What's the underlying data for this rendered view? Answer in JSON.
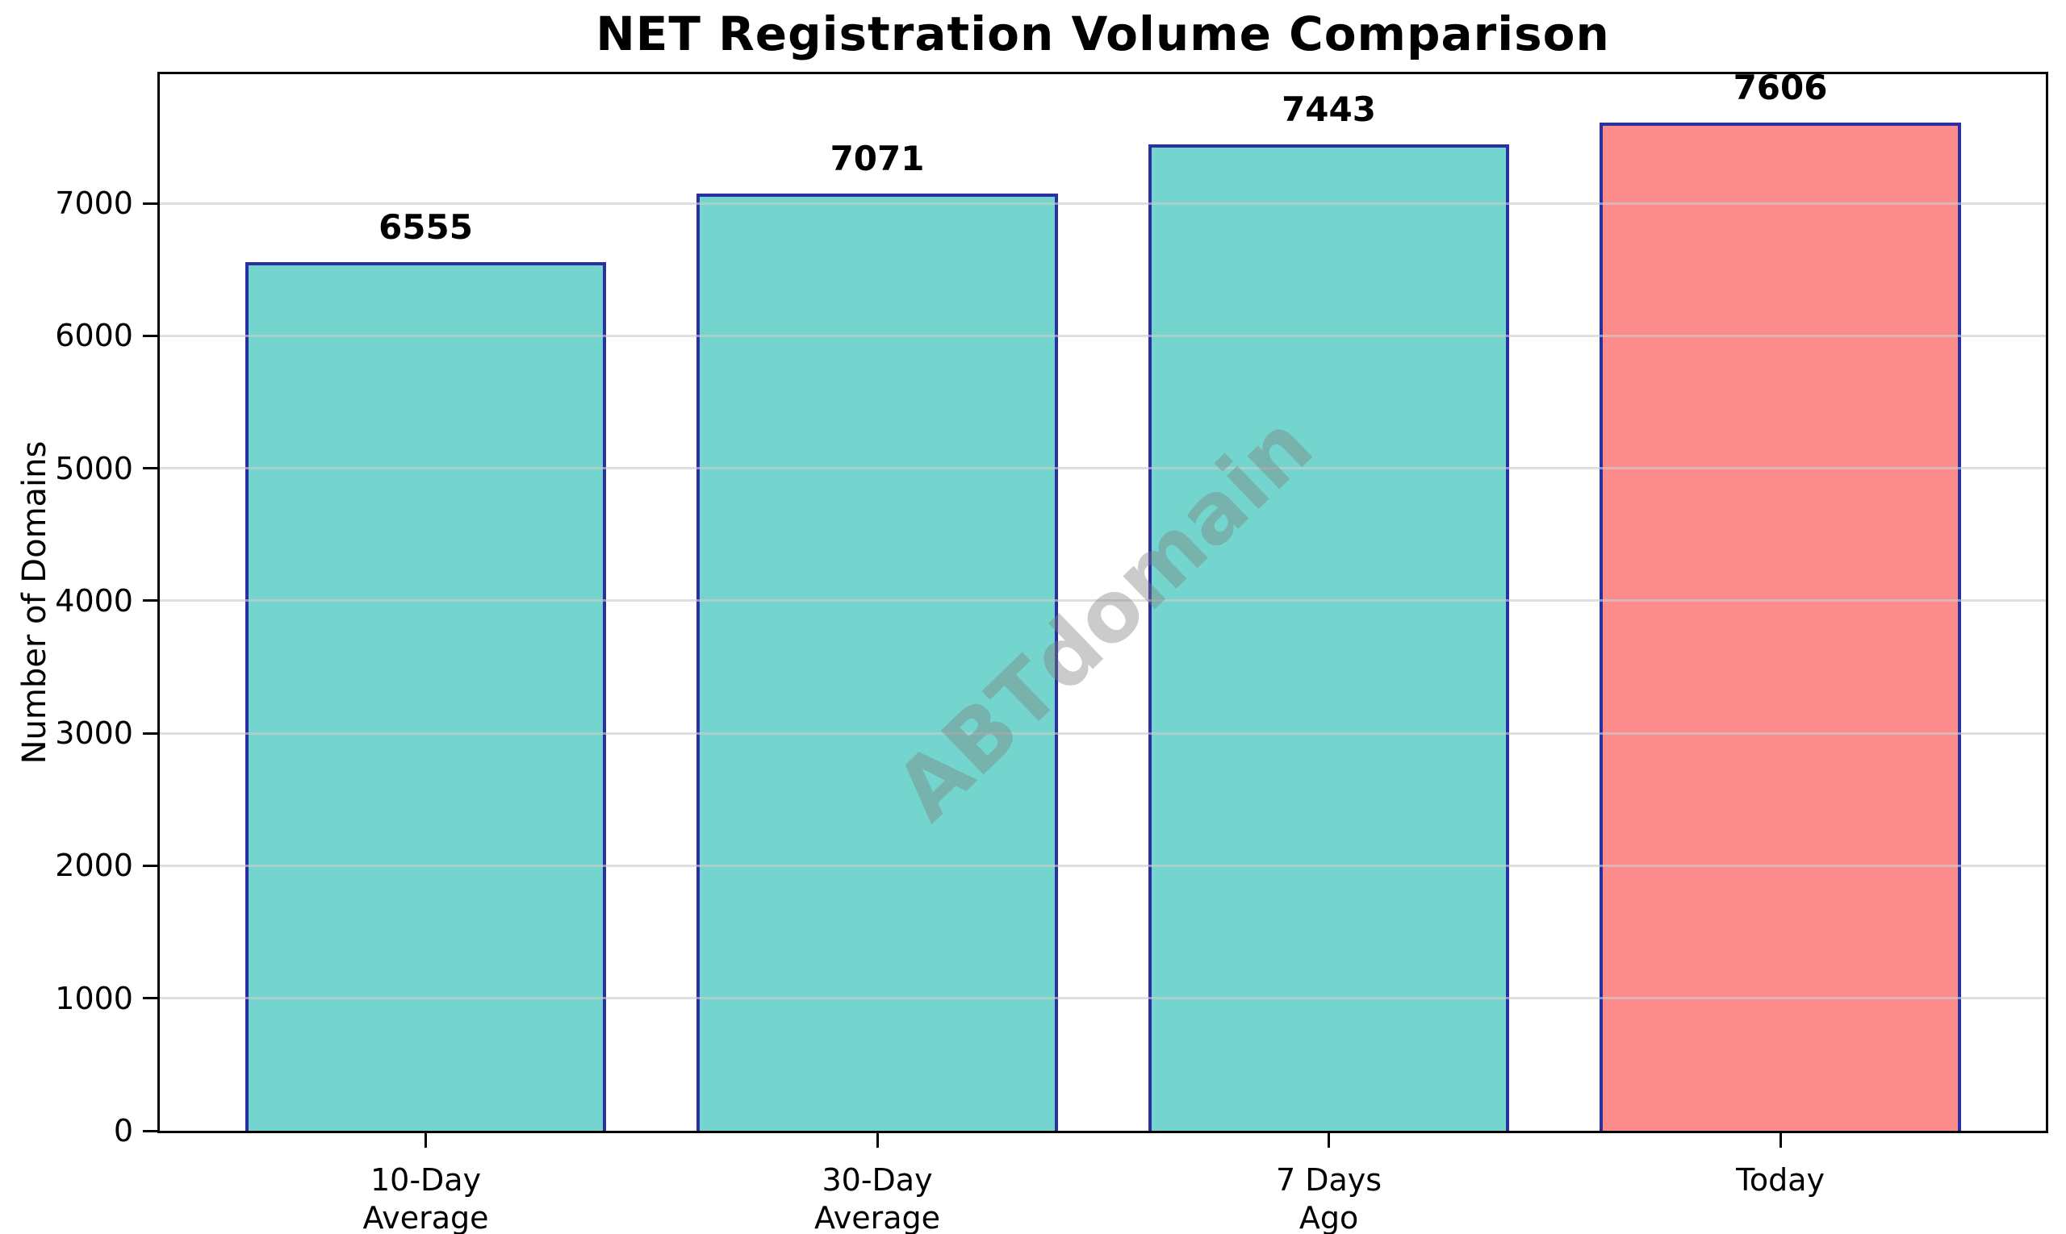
{
  "title": "NET Registration Volume Comparison",
  "watermark": "ABTdomain",
  "chart_data": {
    "type": "bar",
    "title": "NET Registration Volume Comparison",
    "categories": [
      "10-Day Average",
      "30-Day Average",
      "7 Days Ago",
      "Today"
    ],
    "tick_label_lines": [
      [
        "10-Day",
        "Average"
      ],
      [
        "30-Day",
        "Average"
      ],
      [
        "7 Days",
        "Ago"
      ],
      [
        "Today"
      ]
    ],
    "values": [
      6555,
      7071,
      7443,
      7606
    ],
    "value_labels": [
      "6555",
      "7071",
      "7443",
      "7606"
    ],
    "xlabel": "",
    "ylabel": "Number of Domains",
    "ylim": [
      0,
      7974
    ],
    "yticks": [
      0,
      1000,
      2000,
      3000,
      4000,
      5000,
      6000,
      7000
    ],
    "ytick_labels": [
      "0",
      "1000",
      "2000",
      "3000",
      "4000",
      "5000",
      "6000",
      "7000"
    ],
    "grid": "horizontal",
    "legend": "none",
    "colors": {
      "bar_fill": [
        "#73D5CE",
        "#73D5CE",
        "#73D5CE",
        "#FC8B8B"
      ],
      "bar_edge": "#2A2FA1",
      "gridline": "#CCCCCC",
      "axis": "#000000",
      "watermark_gray": "#7D7D7D"
    },
    "annotations": {
      "watermark_text": "ABTdomain",
      "watermark_rotation_deg": -44
    }
  }
}
